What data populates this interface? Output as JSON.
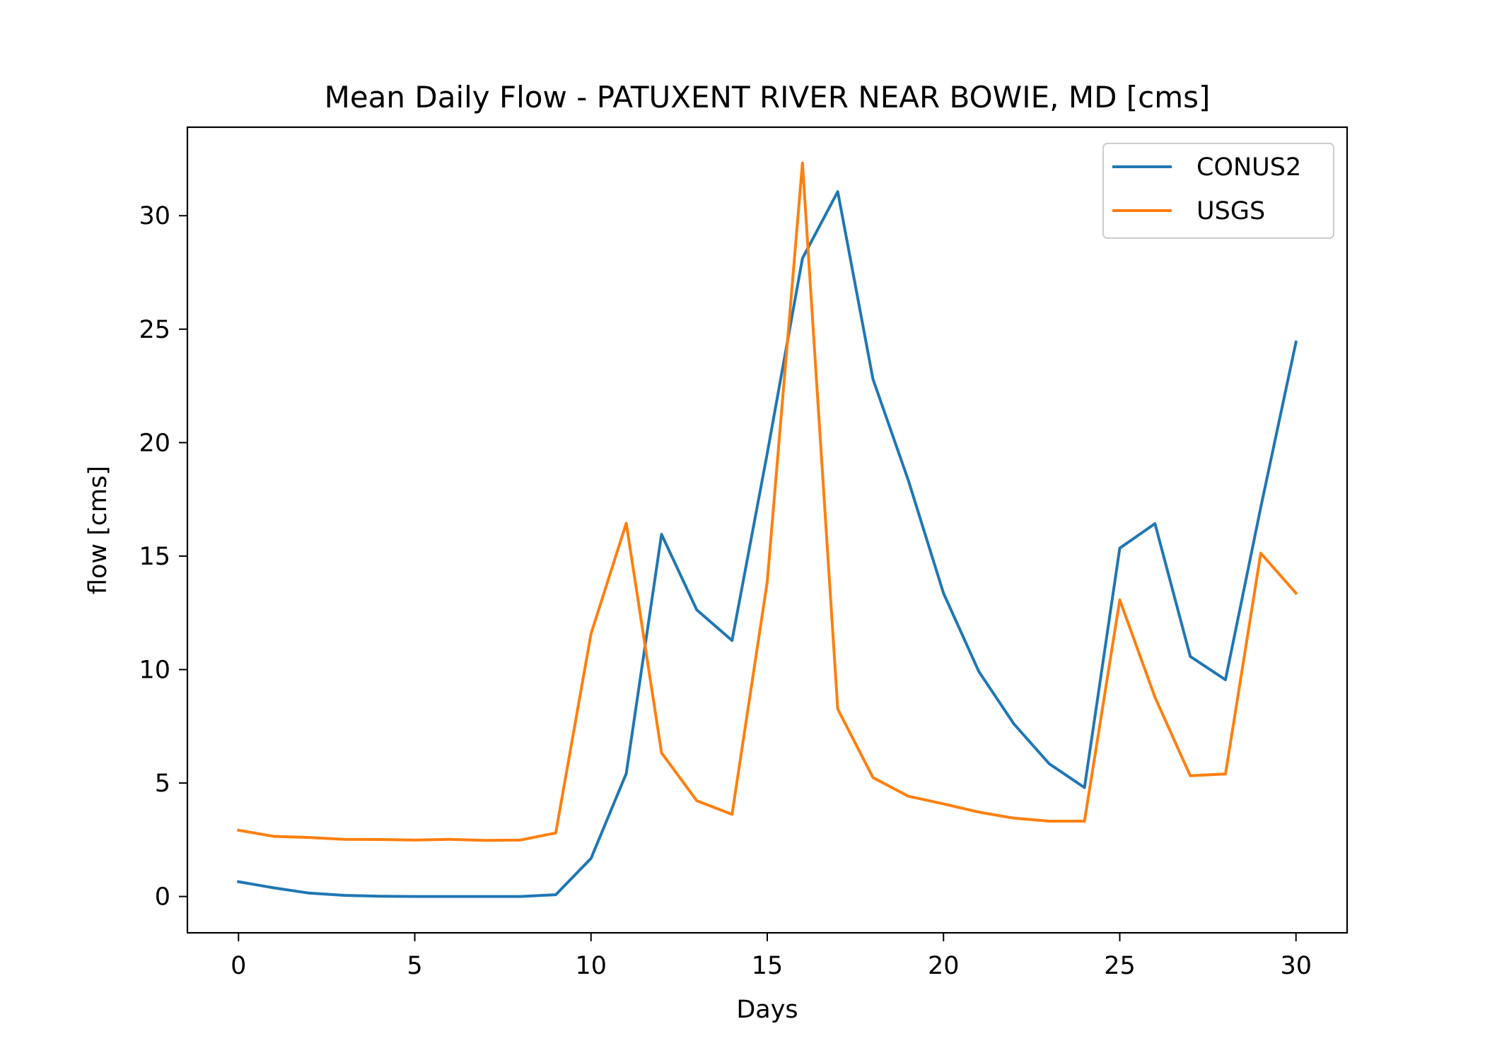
{
  "chart_data": {
    "type": "line",
    "title": "Mean Daily Flow - PATUXENT RIVER NEAR BOWIE, MD [cms]",
    "xlabel": "Days",
    "ylabel": "flow [cms]",
    "xlim": [
      -1.45,
      31.45
    ],
    "ylim": [
      -1.6,
      33.9
    ],
    "xticks": [
      0,
      5,
      10,
      15,
      20,
      25,
      30
    ],
    "yticks": [
      0,
      5,
      10,
      15,
      20,
      25,
      30
    ],
    "grid": false,
    "legend_position": "top-right",
    "x": [
      0,
      1,
      2,
      3,
      4,
      5,
      6,
      7,
      8,
      9,
      10,
      11,
      12,
      13,
      14,
      15,
      16,
      17,
      18,
      19,
      20,
      21,
      22,
      23,
      24,
      25,
      26,
      27,
      28,
      29,
      30
    ],
    "series": [
      {
        "name": "CONUS2",
        "color": "#1f77b4",
        "values": [
          0.65,
          0.38,
          0.15,
          0.05,
          0.01,
          0.0,
          0.0,
          0.0,
          0.0,
          0.08,
          1.68,
          5.42,
          15.96,
          12.63,
          11.28,
          19.53,
          28.12,
          31.06,
          22.8,
          18.35,
          13.37,
          9.92,
          7.6,
          5.85,
          4.8,
          15.35,
          16.43,
          10.58,
          9.55,
          17.15,
          24.43
        ]
      },
      {
        "name": "USGS",
        "color": "#ff7f0e",
        "values": [
          2.92,
          2.65,
          2.6,
          2.52,
          2.51,
          2.49,
          2.52,
          2.47,
          2.49,
          2.8,
          11.58,
          16.45,
          6.33,
          4.22,
          3.62,
          13.87,
          32.32,
          8.26,
          5.24,
          4.42,
          4.08,
          3.72,
          3.45,
          3.32,
          3.32,
          13.07,
          8.78,
          5.32,
          5.4,
          15.13,
          13.37
        ]
      }
    ]
  }
}
